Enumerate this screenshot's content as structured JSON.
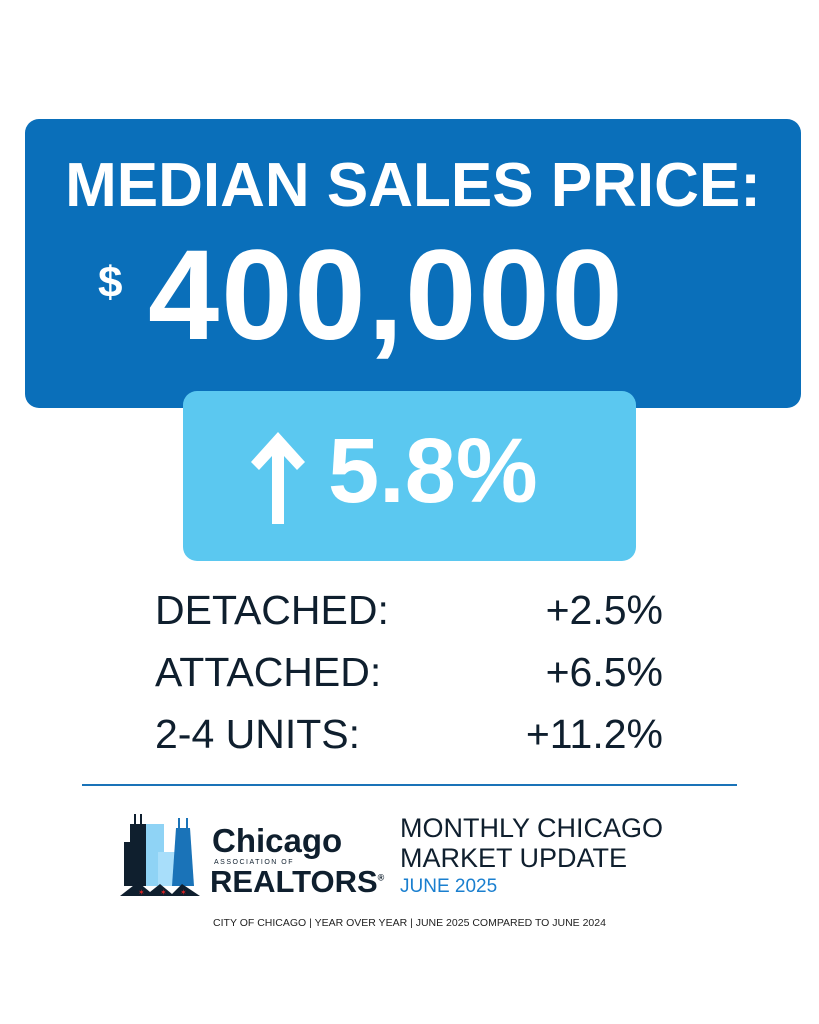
{
  "headline": {
    "title": "MEDIAN SALES PRICE:",
    "currency": "$",
    "value": "400,000"
  },
  "change": {
    "direction_icon": "arrow-up-icon",
    "value": "5.8%"
  },
  "breakdown": [
    {
      "label": "DETACHED:",
      "value": "+2.5%"
    },
    {
      "label": "ATTACHED:",
      "value": "+6.5%"
    },
    {
      "label": "2-4 UNITS:",
      "value": "+11.2%"
    }
  ],
  "logo": {
    "line1": "Chicago",
    "line2": "ASSOCIATION OF",
    "line3": "REALTORS",
    "mark": "®"
  },
  "report": {
    "line1": "MONTHLY CHICAGO",
    "line2": "MARKET UPDATE",
    "month": "JUNE 2025"
  },
  "footer": "CITY OF CHICAGO | YEAR OVER YEAR | JUNE 2025 COMPARED TO JUNE 2024",
  "colors": {
    "primary": "#0a6fba",
    "accent": "#5bc8f0",
    "text": "#0f1f2e"
  }
}
